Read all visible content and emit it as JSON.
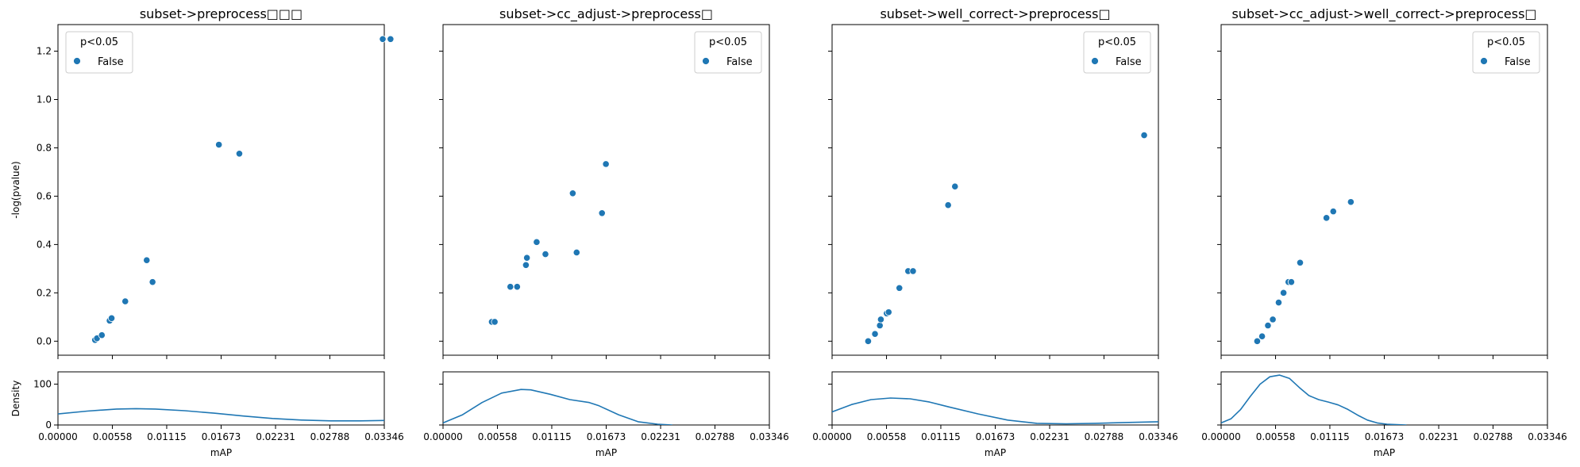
{
  "colors": {
    "marker": "#1f77b4",
    "axis": "#000000",
    "legend_border": "#cccccc",
    "background": "#ffffff"
  },
  "chart_data": [
    {
      "type": "scatter",
      "title": "subset->preprocess□□□",
      "xlabel": "mAP",
      "ylabel": "-log(pvalue)",
      "xlim": [
        0,
        0.03346
      ],
      "ylim": [
        -0.058,
        1.31
      ],
      "yticks": [
        0.0,
        0.2,
        0.4,
        0.6,
        0.8,
        1.0,
        1.2
      ],
      "ytick_labels": [
        "0.0",
        "0.2",
        "0.4",
        "0.6",
        "0.8",
        "1.0",
        "1.2"
      ],
      "xticks": [
        0,
        0.00558,
        0.01115,
        0.01673,
        0.02231,
        0.02788,
        0.03346
      ],
      "xtick_labels": [
        "0.00000",
        "0.00558",
        "0.01115",
        "0.01673",
        "0.02231",
        "0.02788",
        "0.03346"
      ],
      "legend": {
        "title": "p<0.05",
        "entries": [
          "False"
        ],
        "position": "top-left"
      },
      "points": [
        {
          "x": 0.0038,
          "y": 0.005
        },
        {
          "x": 0.004,
          "y": 0.012
        },
        {
          "x": 0.0045,
          "y": 0.025
        },
        {
          "x": 0.0053,
          "y": 0.085
        },
        {
          "x": 0.0055,
          "y": 0.095
        },
        {
          "x": 0.0069,
          "y": 0.165
        },
        {
          "x": 0.0091,
          "y": 0.335
        },
        {
          "x": 0.0097,
          "y": 0.245
        },
        {
          "x": 0.0165,
          "y": 0.813
        },
        {
          "x": 0.0186,
          "y": 0.776
        },
        {
          "x": 0.0333,
          "y": 1.25
        },
        {
          "x": 0.0341,
          "y": 1.25
        }
      ],
      "density": {
        "ylabel": "Density",
        "ylim": [
          0,
          130
        ],
        "yticks": [
          0,
          100
        ],
        "ytick_labels": [
          "0",
          "100"
        ],
        "x": [
          0,
          0.003,
          0.006,
          0.008,
          0.01,
          0.013,
          0.016,
          0.019,
          0.022,
          0.025,
          0.028,
          0.031,
          0.03346
        ],
        "y": [
          27,
          34,
          39,
          40,
          39,
          35,
          29,
          22,
          16,
          12,
          10,
          10,
          11
        ]
      }
    },
    {
      "type": "scatter",
      "title": "subset->cc_adjust->preprocess□",
      "xlabel": "mAP",
      "xlim": [
        0,
        0.03346
      ],
      "ylim": [
        -0.058,
        1.31
      ],
      "xticks": [
        0,
        0.00558,
        0.01115,
        0.01673,
        0.02231,
        0.02788,
        0.03346
      ],
      "xtick_labels": [
        "0.00000",
        "0.00558",
        "0.01115",
        "0.01673",
        "0.02231",
        "0.02788",
        "0.03346"
      ],
      "legend": {
        "title": "p<0.05",
        "entries": [
          "False"
        ],
        "position": "top-right"
      },
      "points": [
        {
          "x": 0.005,
          "y": 0.08
        },
        {
          "x": 0.0053,
          "y": 0.08
        },
        {
          "x": 0.0069,
          "y": 0.225
        },
        {
          "x": 0.0076,
          "y": 0.225
        },
        {
          "x": 0.0085,
          "y": 0.315
        },
        {
          "x": 0.0086,
          "y": 0.345
        },
        {
          "x": 0.0096,
          "y": 0.41
        },
        {
          "x": 0.0105,
          "y": 0.36
        },
        {
          "x": 0.0133,
          "y": 0.612
        },
        {
          "x": 0.0137,
          "y": 0.367
        },
        {
          "x": 0.0163,
          "y": 0.53
        },
        {
          "x": 0.0167,
          "y": 0.733
        }
      ],
      "density": {
        "ylim": [
          0,
          130
        ],
        "x": [
          0,
          0.002,
          0.004,
          0.006,
          0.008,
          0.009,
          0.011,
          0.013,
          0.015,
          0.016,
          0.018,
          0.02,
          0.022,
          0.0235
        ],
        "y": [
          5,
          25,
          55,
          78,
          87,
          86,
          75,
          62,
          55,
          47,
          25,
          8,
          2,
          0
        ]
      }
    },
    {
      "type": "scatter",
      "title": "subset->well_correct->preprocess□",
      "xlabel": "mAP",
      "xlim": [
        0,
        0.03346
      ],
      "ylim": [
        -0.058,
        1.31
      ],
      "xticks": [
        0,
        0.00558,
        0.01115,
        0.01673,
        0.02231,
        0.02788,
        0.03346
      ],
      "xtick_labels": [
        "0.00000",
        "0.00558",
        "0.01115",
        "0.01673",
        "0.02231",
        "0.02788",
        "0.03346"
      ],
      "legend": {
        "title": "p<0.05",
        "entries": [
          "False"
        ],
        "position": "top-right"
      },
      "points": [
        {
          "x": 0.0037,
          "y": 0.0
        },
        {
          "x": 0.0044,
          "y": 0.03
        },
        {
          "x": 0.0049,
          "y": 0.065
        },
        {
          "x": 0.005,
          "y": 0.09
        },
        {
          "x": 0.0056,
          "y": 0.115
        },
        {
          "x": 0.0058,
          "y": 0.12
        },
        {
          "x": 0.0069,
          "y": 0.22
        },
        {
          "x": 0.0078,
          "y": 0.29
        },
        {
          "x": 0.0083,
          "y": 0.29
        },
        {
          "x": 0.0119,
          "y": 0.563
        },
        {
          "x": 0.0126,
          "y": 0.64
        },
        {
          "x": 0.032,
          "y": 0.852
        }
      ],
      "density": {
        "ylim": [
          0,
          130
        ],
        "x": [
          0,
          0.002,
          0.004,
          0.006,
          0.008,
          0.01,
          0.012,
          0.015,
          0.018,
          0.021,
          0.024,
          0.027,
          0.03,
          0.03346
        ],
        "y": [
          32,
          50,
          62,
          66,
          64,
          56,
          44,
          27,
          12,
          4,
          3,
          4,
          6,
          8
        ]
      }
    },
    {
      "type": "scatter",
      "title": "subset->cc_adjust->well_correct->preprocess□",
      "xlabel": "mAP",
      "xlim": [
        0,
        0.03346
      ],
      "ylim": [
        -0.058,
        1.31
      ],
      "xticks": [
        0,
        0.00558,
        0.01115,
        0.01673,
        0.02231,
        0.02788,
        0.03346
      ],
      "xtick_labels": [
        "0.00000",
        "0.00558",
        "0.01115",
        "0.01673",
        "0.02231",
        "0.02788",
        "0.03346"
      ],
      "legend": {
        "title": "p<0.05",
        "entries": [
          "False"
        ],
        "position": "top-right"
      },
      "points": [
        {
          "x": 0.0037,
          "y": 0.0
        },
        {
          "x": 0.0042,
          "y": 0.02
        },
        {
          "x": 0.0048,
          "y": 0.065
        },
        {
          "x": 0.0053,
          "y": 0.09
        },
        {
          "x": 0.0059,
          "y": 0.16
        },
        {
          "x": 0.0064,
          "y": 0.2
        },
        {
          "x": 0.0069,
          "y": 0.245
        },
        {
          "x": 0.0072,
          "y": 0.245
        },
        {
          "x": 0.0081,
          "y": 0.325
        },
        {
          "x": 0.0108,
          "y": 0.51
        },
        {
          "x": 0.0115,
          "y": 0.537
        },
        {
          "x": 0.0133,
          "y": 0.576
        }
      ],
      "density": {
        "ylim": [
          0,
          130
        ],
        "x": [
          0,
          0.001,
          0.002,
          0.003,
          0.004,
          0.005,
          0.006,
          0.007,
          0.008,
          0.009,
          0.01,
          0.011,
          0.012,
          0.013,
          0.014,
          0.015,
          0.016,
          0.017,
          0.018,
          0.019
        ],
        "y": [
          5,
          15,
          38,
          70,
          100,
          118,
          122,
          114,
          92,
          72,
          62,
          56,
          49,
          38,
          24,
          12,
          5,
          2,
          1,
          0
        ]
      }
    }
  ]
}
